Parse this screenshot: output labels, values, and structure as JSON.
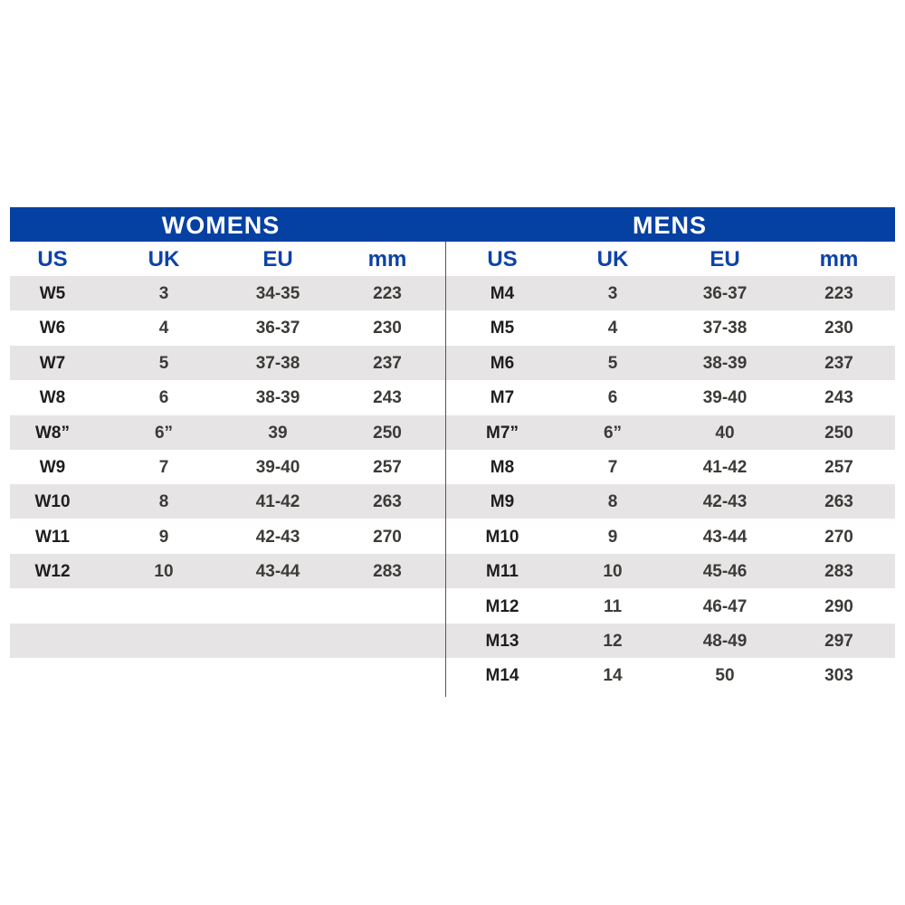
{
  "colors": {
    "banner": "#0540a3",
    "header_text": "#0d42a8",
    "stripe": "#e6e4e5"
  },
  "womens": {
    "title": "WOMENS",
    "columns": [
      "US",
      "UK",
      "EU",
      "mm"
    ],
    "rows": [
      [
        "W5",
        "3",
        "34-35",
        "223"
      ],
      [
        "W6",
        "4",
        "36-37",
        "230"
      ],
      [
        "W7",
        "5",
        "37-38",
        "237"
      ],
      [
        "W8",
        "6",
        "38-39",
        "243"
      ],
      [
        "W8”",
        "6”",
        "39",
        "250"
      ],
      [
        "W9",
        "7",
        "39-40",
        "257"
      ],
      [
        "W10",
        "8",
        "41-42",
        "263"
      ],
      [
        "W11",
        "9",
        "42-43",
        "270"
      ],
      [
        "W12",
        "10",
        "43-44",
        "283"
      ]
    ]
  },
  "mens": {
    "title": "MENS",
    "columns": [
      "US",
      "UK",
      "EU",
      "mm"
    ],
    "rows": [
      [
        "M4",
        "3",
        "36-37",
        "223"
      ],
      [
        "M5",
        "4",
        "37-38",
        "230"
      ],
      [
        "M6",
        "5",
        "38-39",
        "237"
      ],
      [
        "M7",
        "6",
        "39-40",
        "243"
      ],
      [
        "M7”",
        "6”",
        "40",
        "250"
      ],
      [
        "M8",
        "7",
        "41-42",
        "257"
      ],
      [
        "M9",
        "8",
        "42-43",
        "263"
      ],
      [
        "M10",
        "9",
        "43-44",
        "270"
      ],
      [
        "M11",
        "10",
        "45-46",
        "283"
      ],
      [
        "M12",
        "11",
        "46-47",
        "290"
      ],
      [
        "M13",
        "12",
        "48-49",
        "297"
      ],
      [
        "M14",
        "14",
        "50",
        "303"
      ]
    ]
  }
}
